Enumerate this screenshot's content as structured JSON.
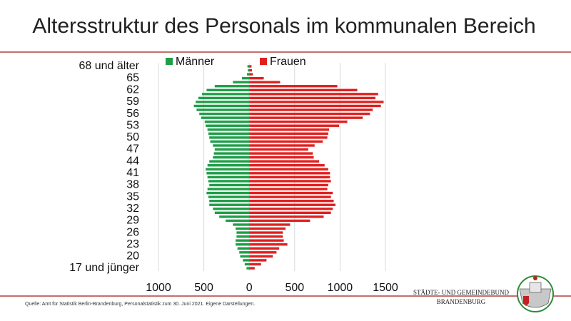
{
  "chart_data": {
    "type": "pyramid",
    "title": "Altersstruktur des Personals im kommunalen Bereich",
    "categories": [
      "17 und jünger",
      null,
      null,
      "20",
      null,
      null,
      "23",
      null,
      null,
      "26",
      null,
      null,
      "29",
      null,
      null,
      "32",
      null,
      null,
      "35",
      null,
      null,
      "38",
      null,
      null,
      "41",
      null,
      null,
      "44",
      null,
      null,
      "47",
      null,
      null,
      "50",
      null,
      null,
      "53",
      null,
      null,
      "56",
      null,
      null,
      "59",
      null,
      null,
      "62",
      null,
      null,
      "65",
      null,
      null,
      "68 und älter"
    ],
    "series": [
      {
        "name": "Männer",
        "color": "#1f9e48",
        "values": [
          -30,
          -50,
          -70,
          -100,
          -110,
          -130,
          -150,
          -150,
          -140,
          -140,
          -150,
          -180,
          -260,
          -330,
          -380,
          -400,
          -440,
          -440,
          -450,
          -470,
          -460,
          -440,
          -450,
          -460,
          -470,
          -480,
          -460,
          -440,
          -400,
          -390,
          -380,
          -400,
          -430,
          -440,
          -450,
          -460,
          -480,
          -490,
          -530,
          -550,
          -580,
          -610,
          -590,
          -560,
          -520,
          -470,
          -380,
          -180,
          -80,
          -25,
          -15,
          -20
        ]
      },
      {
        "name": "Frauen",
        "color": "#e0201f",
        "values": [
          60,
          130,
          190,
          260,
          300,
          330,
          420,
          380,
          370,
          370,
          400,
          450,
          670,
          820,
          900,
          920,
          950,
          930,
          900,
          920,
          860,
          870,
          900,
          890,
          890,
          870,
          830,
          770,
          710,
          700,
          650,
          720,
          810,
          860,
          870,
          880,
          990,
          1080,
          1250,
          1330,
          1360,
          1450,
          1480,
          1390,
          1420,
          1190,
          970,
          340,
          160,
          40,
          30,
          25
        ]
      }
    ],
    "xlim": [
      -1000,
      1500
    ],
    "xticks": [
      {
        "value": -1000,
        "label": "1000"
      },
      {
        "value": -500,
        "label": "500"
      },
      0,
      500,
      1000,
      1500
    ],
    "grid": true,
    "source": "Quelle: Amt für Statistik Berlin-Brandenburg, Personalstatistik zum 30. Juni 2021. Eigene Darstellungen.",
    "logo": [
      "STÄDTE-  UND GEMEINDEBUND",
      "BRANDENBURG"
    ]
  }
}
